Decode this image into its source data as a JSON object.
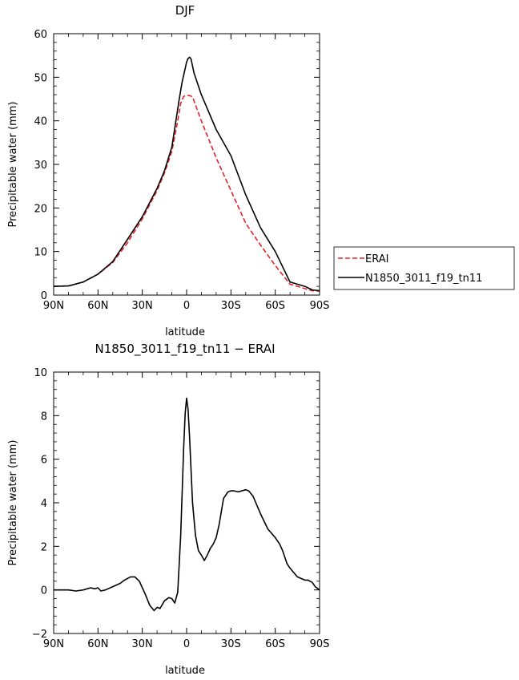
{
  "chart_data": [
    {
      "type": "line",
      "title": "DJF",
      "xlabel": "latitude",
      "ylabel": "Precipitable water (mm)",
      "xlim": [
        90,
        -90
      ],
      "ylim": [
        0,
        60
      ],
      "xticks": [
        {
          "value": 90,
          "label": "90N"
        },
        {
          "value": 60,
          "label": "60N"
        },
        {
          "value": 30,
          "label": "30N"
        },
        {
          "value": 0,
          "label": "0"
        },
        {
          "value": -30,
          "label": "30S"
        },
        {
          "value": -60,
          "label": "60S"
        },
        {
          "value": -90,
          "label": "90S"
        }
      ],
      "yticks": [
        0,
        10,
        20,
        30,
        40,
        50,
        60
      ],
      "legend_position": "right",
      "series": [
        {
          "name": "ERAI",
          "color": "#e8202a",
          "style": "dashed",
          "x": [
            90,
            80,
            70,
            60,
            50,
            40,
            30,
            20,
            15,
            10,
            6,
            4,
            2,
            0,
            -2,
            -4,
            -10,
            -20,
            -30,
            -40,
            -50,
            -60,
            -70,
            -75,
            -80,
            -85,
            -90
          ],
          "y": [
            2,
            2.1,
            3,
            4.8,
            7.5,
            12,
            17.5,
            24,
            28,
            33,
            40,
            44,
            45.6,
            45.8,
            45.8,
            45.5,
            40,
            31.5,
            24,
            16.5,
            11.5,
            6.8,
            2.5,
            2,
            1.5,
            1,
            0.9
          ]
        },
        {
          "name": "N1850_3011_f19_tn11",
          "color": "#000000",
          "style": "solid",
          "x": [
            90,
            80,
            70,
            60,
            50,
            40,
            30,
            20,
            15,
            10,
            5,
            3,
            1,
            0,
            -1,
            -2,
            -3,
            -5,
            -10,
            -20,
            -30,
            -40,
            -50,
            -60,
            -70,
            -75,
            -80,
            -85,
            -90
          ],
          "y": [
            2,
            2.1,
            3,
            4.8,
            7.7,
            12.8,
            18,
            24.5,
            28.5,
            34,
            45,
            49,
            52,
            53.5,
            54.3,
            54.6,
            54.2,
            51,
            46,
            38,
            32,
            23,
            15.5,
            10,
            3,
            2.5,
            2,
            1.2,
            1
          ]
        }
      ]
    },
    {
      "type": "line",
      "title": "N1850_3011_f19_tn11 − ERAI",
      "xlabel": "latitude",
      "ylabel": "Precipitable water (mm)",
      "xlim": [
        90,
        -90
      ],
      "ylim": [
        -2,
        10
      ],
      "xticks": [
        {
          "value": 90,
          "label": "90N"
        },
        {
          "value": 60,
          "label": "60N"
        },
        {
          "value": 30,
          "label": "30N"
        },
        {
          "value": 0,
          "label": "0"
        },
        {
          "value": -30,
          "label": "30S"
        },
        {
          "value": -60,
          "label": "60S"
        },
        {
          "value": -90,
          "label": "90S"
        }
      ],
      "yticks": [
        -2,
        0,
        2,
        4,
        6,
        8,
        10
      ],
      "series": [
        {
          "color": "#000000",
          "style": "solid",
          "x": [
            90,
            80,
            75,
            70,
            65,
            62,
            60,
            58,
            55,
            50,
            45,
            42,
            38,
            35,
            32,
            30,
            28,
            25,
            22,
            20,
            18,
            15,
            12,
            10,
            8,
            6,
            4,
            2,
            1,
            0,
            -1,
            -2,
            -4,
            -6,
            -8,
            -10,
            -12,
            -14,
            -16,
            -18,
            -20,
            -22,
            -25,
            -28,
            -30,
            -32,
            -35,
            -40,
            -42,
            -45,
            -50,
            -55,
            -60,
            -63,
            -65,
            -68,
            -70,
            -75,
            -80,
            -82,
            -85,
            -87,
            -90
          ],
          "y": [
            0,
            0,
            -0.05,
            0,
            0.1,
            0.05,
            0.1,
            -0.05,
            0,
            0.15,
            0.3,
            0.45,
            0.6,
            0.6,
            0.4,
            0.1,
            -0.2,
            -0.7,
            -0.95,
            -0.8,
            -0.85,
            -0.5,
            -0.35,
            -0.4,
            -0.6,
            -0.1,
            2.5,
            6.5,
            8.1,
            8.8,
            8.3,
            7,
            4,
            2.5,
            1.8,
            1.6,
            1.35,
            1.6,
            1.9,
            2.1,
            2.4,
            3,
            4.2,
            4.5,
            4.55,
            4.55,
            4.5,
            4.6,
            4.55,
            4.3,
            3.5,
            2.8,
            2.4,
            2.1,
            1.8,
            1.2,
            1,
            0.6,
            0.45,
            0.45,
            0.35,
            0.15,
            0
          ]
        }
      ]
    }
  ],
  "legend": {
    "entries": [
      "ERAI",
      "N1850_3011_f19_tn11"
    ]
  }
}
